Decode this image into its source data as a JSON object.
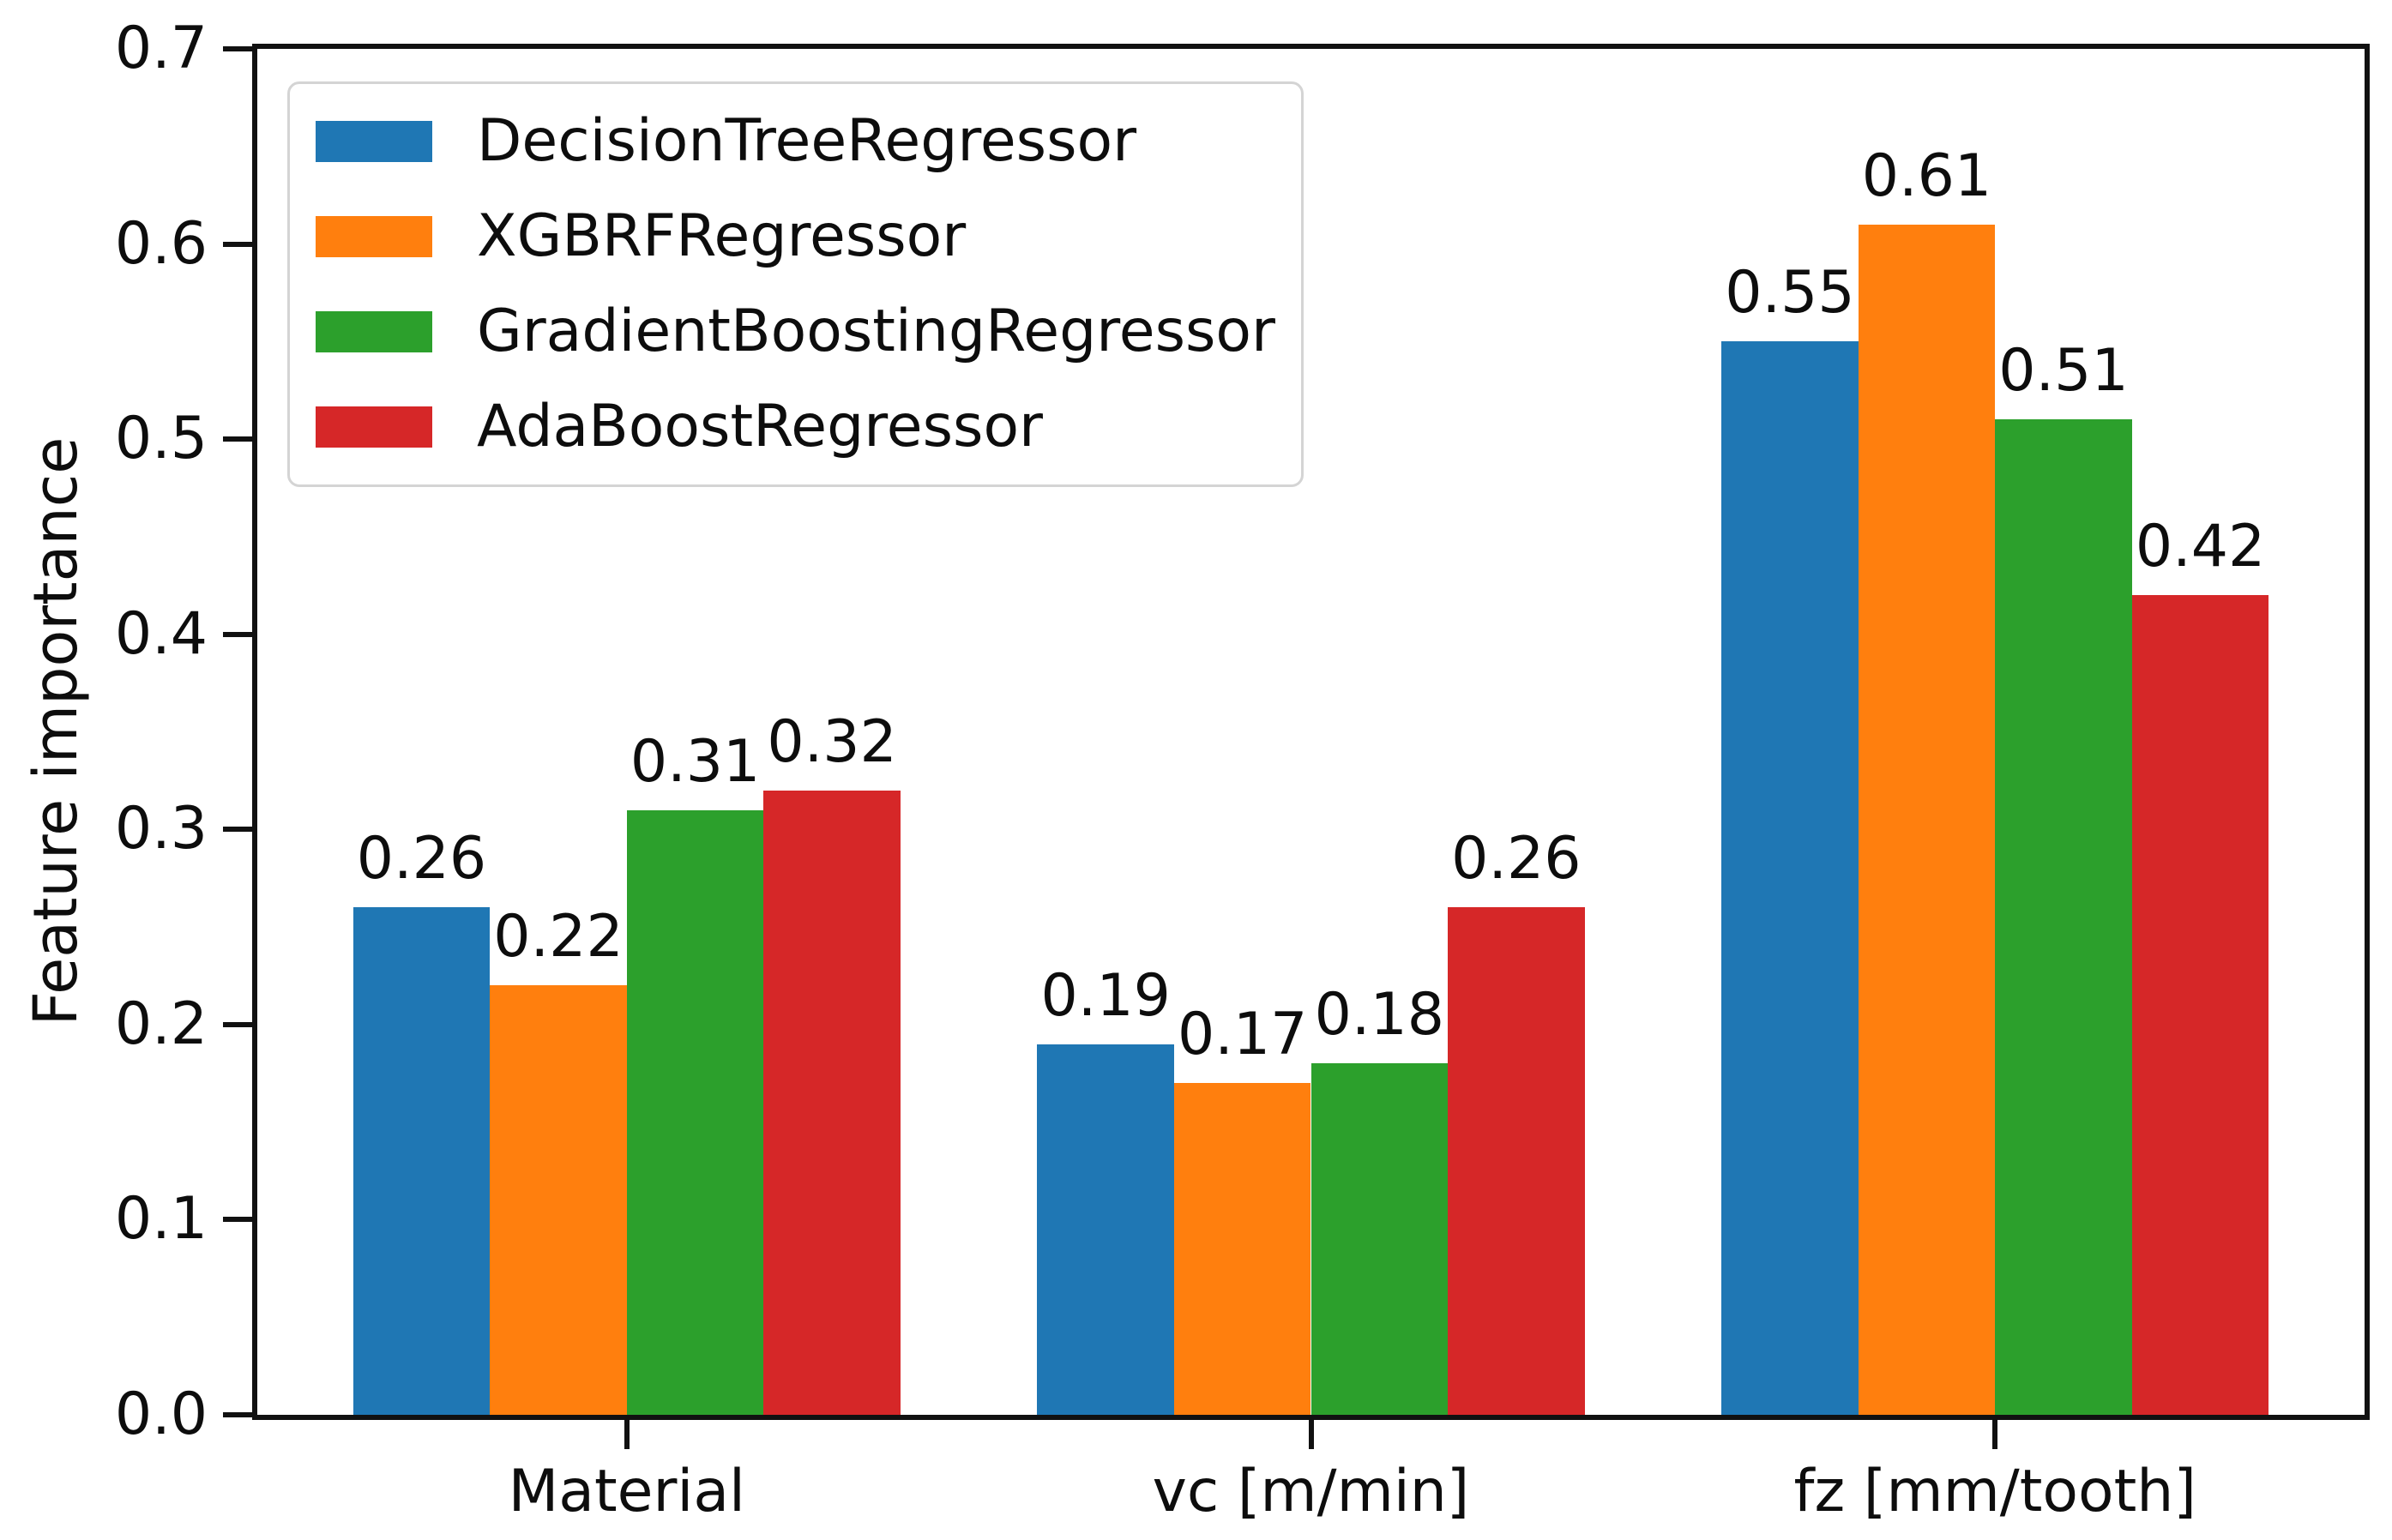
{
  "chart_data": {
    "type": "bar",
    "title": "",
    "xlabel": "",
    "ylabel": "Feature importance",
    "categories": [
      "Material",
      "vc [m/min]",
      "fz [mm/tooth]"
    ],
    "series": [
      {
        "name": "DecisionTreeRegressor",
        "color": "#1f77b4",
        "values": [
          0.26,
          0.19,
          0.55
        ],
        "labels": [
          "0.26",
          "0.19",
          "0.55"
        ]
      },
      {
        "name": "XGBRFRegressor",
        "color": "#ff7f0e",
        "values": [
          0.22,
          0.17,
          0.61
        ],
        "labels": [
          "0.22",
          "0.17",
          "0.61"
        ]
      },
      {
        "name": "GradientBoostingRegressor",
        "color": "#2ca02c",
        "values": [
          0.31,
          0.18,
          0.51
        ],
        "labels": [
          "0.31",
          "0.18",
          "0.51"
        ]
      },
      {
        "name": "AdaBoostRegressor",
        "color": "#d62728",
        "values": [
          0.32,
          0.26,
          0.42
        ],
        "labels": [
          "0.32",
          "0.26",
          "0.42"
        ]
      }
    ],
    "ylim": [
      0.0,
      0.7
    ],
    "yticks": [
      "0.0",
      "0.1",
      "0.2",
      "0.3",
      "0.4",
      "0.5",
      "0.6",
      "0.7"
    ],
    "grid": false,
    "legend_position": "upper-left",
    "bar_group_width_units": 0.8,
    "frame_color": "#111111",
    "text_color": "#0d0d0d",
    "background_color": "#ffffff"
  }
}
